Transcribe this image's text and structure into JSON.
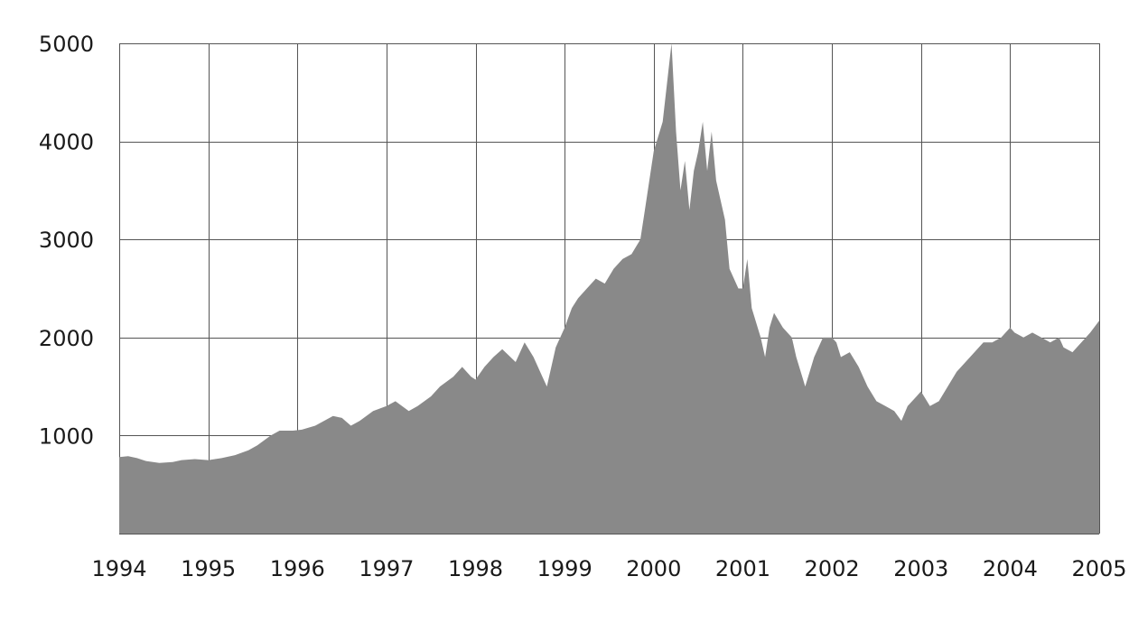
{
  "chart_data": {
    "type": "area",
    "title": "",
    "xlabel": "",
    "ylabel": "",
    "xlim": [
      1994,
      2005
    ],
    "ylim": [
      0,
      5000
    ],
    "x_ticks": [
      "1994",
      "1995",
      "1996",
      "1997",
      "1998",
      "1999",
      "2000",
      "2001",
      "2002",
      "2003",
      "2004",
      "2005"
    ],
    "y_ticks": [
      "1000",
      "2000",
      "3000",
      "4000",
      "5000"
    ],
    "grid": true,
    "fill_color": "#898989",
    "series": [
      {
        "x": [
          1994.0,
          1994.1,
          1994.2,
          1994.3,
          1994.45,
          1994.6,
          1994.7,
          1994.85,
          1995.0,
          1995.15,
          1995.3,
          1995.45,
          1995.55,
          1995.7,
          1995.8,
          1995.95,
          1996.05,
          1996.2,
          1996.4,
          1996.5,
          1996.6,
          1996.7,
          1996.85,
          1997.0,
          1997.1,
          1997.25,
          1997.35,
          1997.5,
          1997.6,
          1997.75,
          1997.85,
          1997.95,
          1998.0,
          1998.1,
          1998.2,
          1998.3,
          1998.45,
          1998.55,
          1998.65,
          1998.75,
          1998.8,
          1998.9,
          1999.0,
          1999.08,
          1999.15,
          1999.25,
          1999.35,
          1999.45,
          1999.55,
          1999.65,
          1999.75,
          1999.85,
          1999.9,
          2000.0,
          2000.1,
          2000.15,
          2000.2,
          2000.25,
          2000.3,
          2000.35,
          2000.4,
          2000.45,
          2000.5,
          2000.55,
          2000.6,
          2000.65,
          2000.7,
          2000.75,
          2000.8,
          2000.85,
          2000.9,
          2000.95,
          2001.0,
          2001.05,
          2001.1,
          2001.2,
          2001.25,
          2001.3,
          2001.35,
          2001.45,
          2001.55,
          2001.6,
          2001.7,
          2001.8,
          2001.9,
          2002.0,
          2002.05,
          2002.1,
          2002.2,
          2002.3,
          2002.4,
          2002.5,
          2002.6,
          2002.7,
          2002.78,
          2002.85,
          2002.95,
          2003.0,
          2003.1,
          2003.2,
          2003.3,
          2003.4,
          2003.5,
          2003.6,
          2003.7,
          2003.8,
          2003.9,
          2004.0,
          2004.05,
          2004.15,
          2004.25,
          2004.35,
          2004.45,
          2004.55,
          2004.6,
          2004.7,
          2004.8,
          2004.9,
          2005.0
        ],
        "values": [
          780,
          790,
          770,
          740,
          720,
          730,
          750,
          760,
          750,
          770,
          800,
          850,
          900,
          1000,
          1050,
          1050,
          1060,
          1100,
          1200,
          1180,
          1100,
          1150,
          1250,
          1300,
          1350,
          1250,
          1300,
          1400,
          1500,
          1600,
          1700,
          1600,
          1570,
          1700,
          1800,
          1880,
          1750,
          1950,
          1800,
          1600,
          1500,
          1900,
          2100,
          2300,
          2400,
          2500,
          2600,
          2550,
          2700,
          2800,
          2850,
          3000,
          3300,
          3900,
          4200,
          4600,
          5000,
          4100,
          3500,
          3800,
          3300,
          3700,
          3900,
          4200,
          3700,
          4100,
          3600,
          3400,
          3200,
          2700,
          2600,
          2500,
          2500,
          2800,
          2300,
          2000,
          1800,
          2100,
          2250,
          2100,
          2000,
          1800,
          1500,
          1800,
          2000,
          2000,
          1950,
          1800,
          1850,
          1700,
          1500,
          1350,
          1300,
          1250,
          1150,
          1300,
          1400,
          1450,
          1300,
          1350,
          1500,
          1650,
          1750,
          1850,
          1950,
          1950,
          2000,
          2100,
          2050,
          2000,
          2050,
          2000,
          1950,
          2000,
          1900,
          1850,
          1950,
          2050,
          2170
        ]
      }
    ]
  }
}
